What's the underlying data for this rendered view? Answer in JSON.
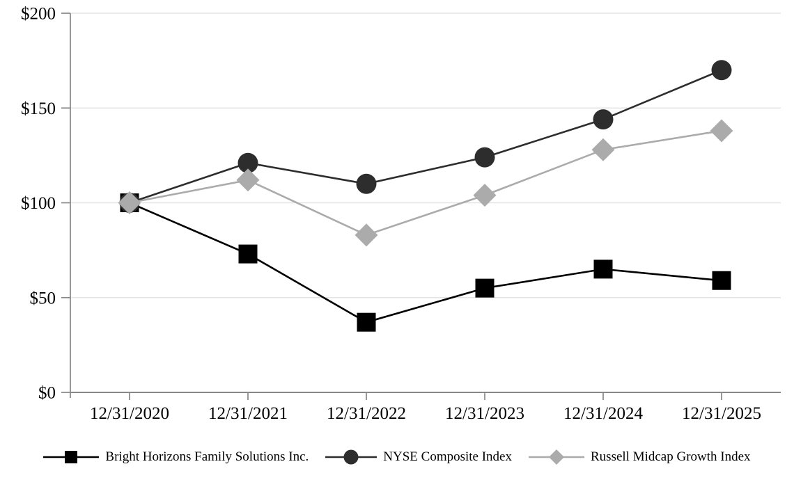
{
  "chart_data": {
    "type": "line",
    "title": "",
    "x_categories": [
      "12/31/2020",
      "12/31/2021",
      "12/31/2022",
      "12/31/2023",
      "12/31/2024",
      "12/31/2025"
    ],
    "series": [
      {
        "name": "Bright Horizons Family Solutions Inc.",
        "marker": "square",
        "color": "#000000",
        "values": [
          100,
          73,
          37,
          55,
          65,
          59
        ]
      },
      {
        "name": "NYSE Composite Index",
        "marker": "circle",
        "color": "#2d2d2d",
        "values": [
          100,
          121,
          110,
          124,
          144,
          170
        ]
      },
      {
        "name": "Russell Midcap Growth Index",
        "marker": "diamond",
        "color": "#ababab",
        "values": [
          100,
          112,
          83,
          104,
          128,
          138
        ]
      }
    ],
    "y_ticks": [
      "$0",
      "$50",
      "$100",
      "$150",
      "$200"
    ],
    "y_tick_values": [
      0,
      50,
      100,
      150,
      200
    ],
    "ylim": [
      0,
      200
    ],
    "grid": true,
    "legend_position": "bottom",
    "axis_color": "#878787",
    "grid_color": "#e3e3e3",
    "background_color": "#ffffff"
  }
}
